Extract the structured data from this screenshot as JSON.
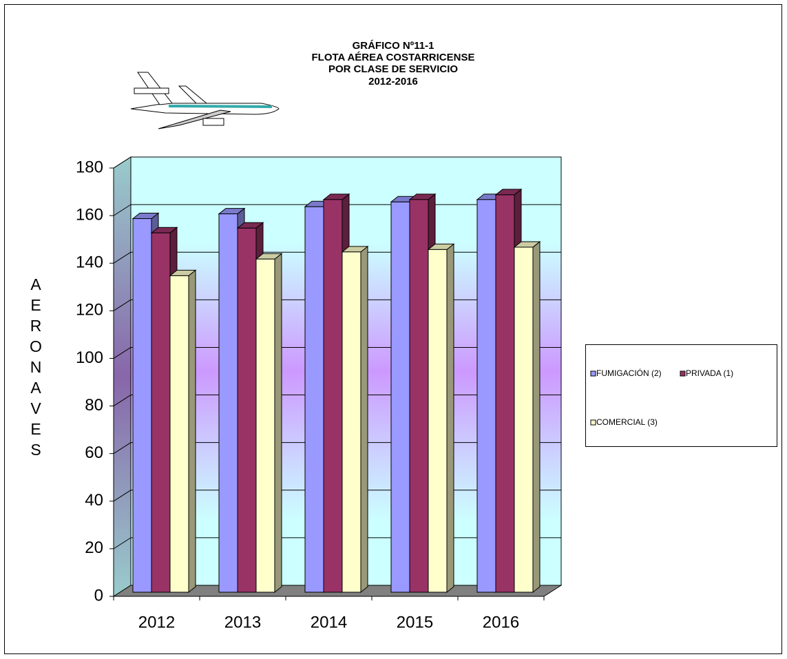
{
  "chart_data": {
    "type": "bar3d",
    "title": [
      "GRÁFICO Nº11-1",
      "FLOTA AÉREA COSTARRICENSE",
      "POR CLASE DE SERVICIO",
      "2012-2016"
    ],
    "y_label": "AERONAVES",
    "categories": [
      "2012",
      "2013",
      "2014",
      "2015",
      "2016"
    ],
    "series": [
      {
        "name": "FUMIGACIÓN (2)",
        "color": "#9999ff",
        "values": [
          157,
          159,
          162,
          164,
          165
        ]
      },
      {
        "name": "PRIVADA (1)",
        "color": "#993366",
        "values": [
          151,
          153,
          165,
          165,
          167
        ]
      },
      {
        "name": "COMERCIAL (3)",
        "color": "#ffffcc",
        "values": [
          133,
          140,
          143,
          144,
          145
        ]
      }
    ],
    "ylim": [
      0,
      180
    ],
    "yticks": [
      0,
      20,
      40,
      60,
      80,
      100,
      120,
      140,
      160,
      180
    ],
    "grid": true,
    "legend": "right"
  }
}
